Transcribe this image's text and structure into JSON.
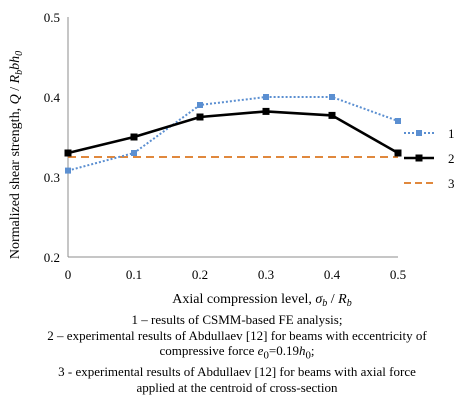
{
  "chart_data": {
    "type": "line",
    "x": [
      0,
      0.1,
      0.2,
      0.3,
      0.4,
      0.5
    ],
    "x_tick_labels": [
      "0",
      "0.1",
      "0.2",
      "0.3",
      "0.4",
      "0.5"
    ],
    "y_tick_labels": [
      "0.2",
      "0.3",
      "0.4",
      "0.5"
    ],
    "xlim": [
      0,
      0.5
    ],
    "ylim": [
      0.2,
      0.5
    ],
    "grid": false,
    "legend_position": "right",
    "xlabel": {
      "prefix": "Axial compression level, ",
      "sym1": "σ",
      "sub1": "b",
      "mid": " / ",
      "sym2": "R",
      "sub2": "b"
    },
    "ylabel": {
      "prefix": "Normalized shear strength, ",
      "sym1": "Q",
      "mid1": " / ",
      "sym2": "R",
      "sub2": "b",
      "sym3": "bh",
      "sub3": "0"
    },
    "series": [
      {
        "name": "1",
        "values": [
          0.308,
          0.33,
          0.39,
          0.4,
          0.4,
          0.37
        ],
        "color": "#5b8fd1",
        "style": "dotted-square"
      },
      {
        "name": "2",
        "values": [
          0.33,
          0.35,
          0.375,
          0.382,
          0.377,
          0.33
        ],
        "color": "#000000",
        "style": "solid-square"
      },
      {
        "name": "3",
        "values": [
          0.325,
          0.325,
          0.325,
          0.325,
          0.325,
          0.325
        ],
        "color": "#e0883d",
        "style": "dashed"
      }
    ]
  },
  "caption": {
    "line1": "1 – results of CSMM-based FE analysis;",
    "line2": "2 – experimental results of Abdullaev [12] for beams with eccentricity of",
    "line3_prefix": "compressive force ",
    "line3_sym": "e",
    "line3_sub": "0",
    "line3_eq": "=0.19",
    "line3_sym2": "h",
    "line3_sub2": "0",
    "line3_end": ";",
    "line4": "3 - experimental results of Abdullaev [12] for beams with axial force",
    "line5": "applied at the centroid of cross-section"
  }
}
